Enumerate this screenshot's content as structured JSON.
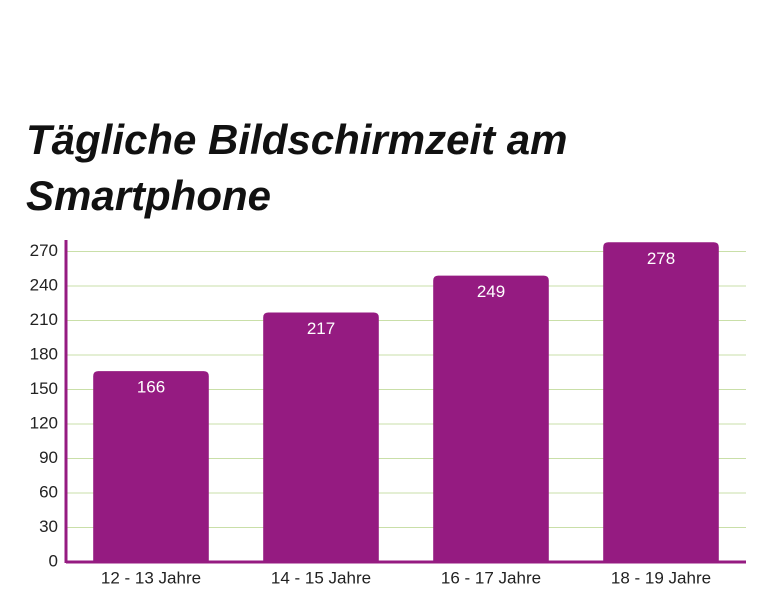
{
  "chart_data": {
    "type": "bar",
    "title": "Tägliche Bildschirmzeit am Smartphone",
    "categories": [
      "12 - 13 Jahre",
      "14 - 15 Jahre",
      "16 - 17 Jahre",
      "18 - 19 Jahre"
    ],
    "values": [
      166,
      217,
      249,
      278
    ],
    "color": "#951b81",
    "ylim": [
      0,
      280
    ],
    "yticks": [
      0,
      30,
      60,
      90,
      120,
      150,
      180,
      210,
      240,
      270
    ],
    "grid": true
  }
}
